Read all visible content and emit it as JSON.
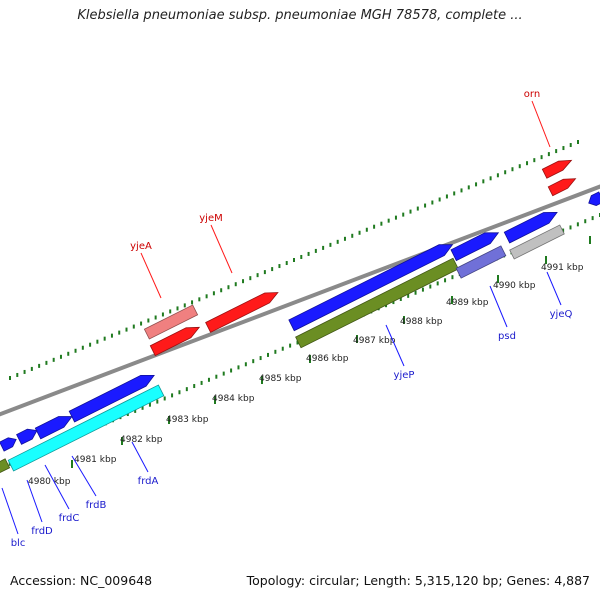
{
  "header": {
    "title": "Klebsiella pneumoniae subsp. pneumoniae MGH 78578, complete ..."
  },
  "footer": {
    "accession": "Accession: NC_009648",
    "summary": "Topology: circular; Length: 5,315,120 bp; Genes: 4,887"
  },
  "map": {
    "colors": {
      "backbone": "#8a8a8a",
      "tick": "#1f7a1f",
      "red": "#ff1a1a",
      "pink": "#f08080",
      "blue": "#1a1aff",
      "lavender": "#7070d8",
      "olive": "#6b8e23",
      "cyan": "#19ffff",
      "grey": "#c0c0c0",
      "label_red": "#cc0000",
      "label_blue": "#1a1acc"
    },
    "kbp_labels": [
      "4980 kbp",
      "4981 kbp",
      "4982 kbp",
      "4983 kbp",
      "4984 kbp",
      "4985 kbp",
      "4986 kbp",
      "4987 kbp",
      "4988 kbp",
      "4989 kbp",
      "4990 kbp",
      "4991 kbp"
    ],
    "gene_labels": [
      {
        "name": "orn",
        "color": "red"
      },
      {
        "name": "yjeM",
        "color": "red"
      },
      {
        "name": "yjeA",
        "color": "red"
      },
      {
        "name": "yjeP",
        "color": "blue"
      },
      {
        "name": "psd",
        "color": "blue"
      },
      {
        "name": "yjeQ",
        "color": "blue"
      },
      {
        "name": "frdA",
        "color": "blue"
      },
      {
        "name": "frdB",
        "color": "blue"
      },
      {
        "name": "frdC",
        "color": "blue"
      },
      {
        "name": "frdD",
        "color": "blue"
      },
      {
        "name": "blc",
        "color": "blue"
      }
    ]
  }
}
